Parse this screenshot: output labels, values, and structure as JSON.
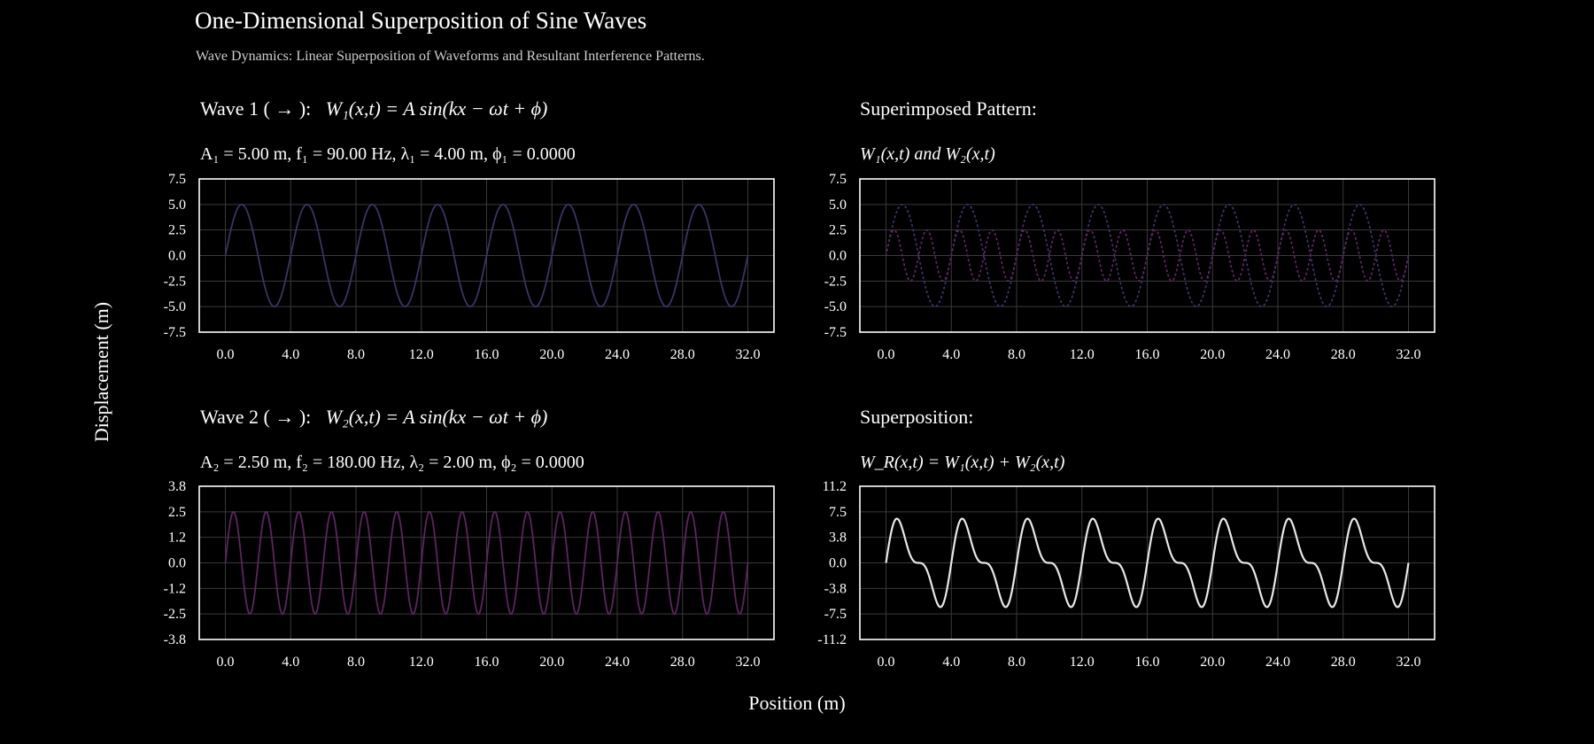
{
  "figure": {
    "title": "One-Dimensional Superposition of Sine Waves",
    "subtitle": "Wave Dynamics: Linear Superposition of Waveforms and Resultant Interference Patterns.",
    "ylabel": "Displacement (m)",
    "xlabel": "Position (m)"
  },
  "panels": {
    "wave1": {
      "title_text": "Wave 1 ( → ):",
      "equation": "W₁(x,t) = A sin(kx − ωt + ϕ)",
      "params": "A₁ = 5.00 m,   f₁ = 90.00 Hz,   λ₁ = 4.00 m,   ϕ₁ = 0.0000"
    },
    "wave2": {
      "title_text": "Wave 2 ( → ):",
      "equation": "W₂(x,t) = A sin(kx − ωt + ϕ)",
      "params": "A₂ = 2.50 m,   f₂ = 180.00 Hz,   λ₂ = 2.00 m,   ϕ₂ = 0.0000"
    },
    "superimposed": {
      "title_text": "Superimposed Pattern:",
      "params": "W₁(x,t)  and  W₂(x,t)"
    },
    "superposition": {
      "title_text": "Superposition:",
      "params": "W_R(x,t) = W₁(x,t) + W₂(x,t)"
    }
  },
  "colors": {
    "wave1": "#3b3367",
    "wave2": "#5e2462",
    "resultant": "#e8e8e8",
    "grid": "#3a3a3a",
    "frame": "#ffffff"
  },
  "chart_data": [
    {
      "id": "wave1",
      "type": "line",
      "series": [
        {
          "amplitude": 5.0,
          "wavelength": 4.0,
          "phase": 0.0,
          "style": "solid"
        }
      ],
      "x_range": [
        0,
        32
      ],
      "xlim": [
        -1.6,
        33.6
      ],
      "ylim": [
        -7.5,
        7.5
      ],
      "xticks": [
        "0.0",
        "4.0",
        "8.0",
        "12.0",
        "16.0",
        "20.0",
        "24.0",
        "28.0",
        "32.0"
      ],
      "yticks": [
        "7.5",
        "5.0",
        "2.5",
        "0.0",
        "-2.5",
        "-5.0",
        "-7.5"
      ],
      "grid": true
    },
    {
      "id": "superimposed",
      "type": "line",
      "series": [
        {
          "amplitude": 5.0,
          "wavelength": 4.0,
          "phase": 0.0,
          "style": "dotted"
        },
        {
          "amplitude": 2.5,
          "wavelength": 2.0,
          "phase": 0.0,
          "style": "dotted"
        }
      ],
      "x_range": [
        0,
        32
      ],
      "xlim": [
        -1.6,
        33.6
      ],
      "ylim": [
        -7.5,
        7.5
      ],
      "xticks": [
        "0.0",
        "4.0",
        "8.0",
        "12.0",
        "16.0",
        "20.0",
        "24.0",
        "28.0",
        "32.0"
      ],
      "yticks": [
        "7.5",
        "5.0",
        "2.5",
        "0.0",
        "-2.5",
        "-5.0",
        "-7.5"
      ],
      "grid": true
    },
    {
      "id": "wave2",
      "type": "line",
      "series": [
        {
          "amplitude": 2.5,
          "wavelength": 2.0,
          "phase": 0.0,
          "style": "solid"
        }
      ],
      "x_range": [
        0,
        32
      ],
      "xlim": [
        -1.6,
        33.6
      ],
      "ylim": [
        -3.75,
        3.75
      ],
      "xticks": [
        "0.0",
        "4.0",
        "8.0",
        "12.0",
        "16.0",
        "20.0",
        "24.0",
        "28.0",
        "32.0"
      ],
      "yticks": [
        "3.8",
        "2.5",
        "1.2",
        "0.0",
        "-1.2",
        "-2.5",
        "-3.8"
      ],
      "grid": true
    },
    {
      "id": "superposition",
      "type": "line",
      "series": [
        {
          "components": [
            {
              "amplitude": 5.0,
              "wavelength": 4.0,
              "phase": 0.0
            },
            {
              "amplitude": 2.5,
              "wavelength": 2.0,
              "phase": 0.0
            }
          ],
          "style": "solid"
        }
      ],
      "x_range": [
        0,
        32
      ],
      "xlim": [
        -1.6,
        33.6
      ],
      "ylim": [
        -11.25,
        11.25
      ],
      "xticks": [
        "0.0",
        "4.0",
        "8.0",
        "12.0",
        "16.0",
        "20.0",
        "24.0",
        "28.0",
        "32.0"
      ],
      "yticks": [
        "11.2",
        "7.5",
        "3.8",
        "0.0",
        "-3.8",
        "-7.5",
        "-11.2"
      ],
      "grid": true
    }
  ]
}
